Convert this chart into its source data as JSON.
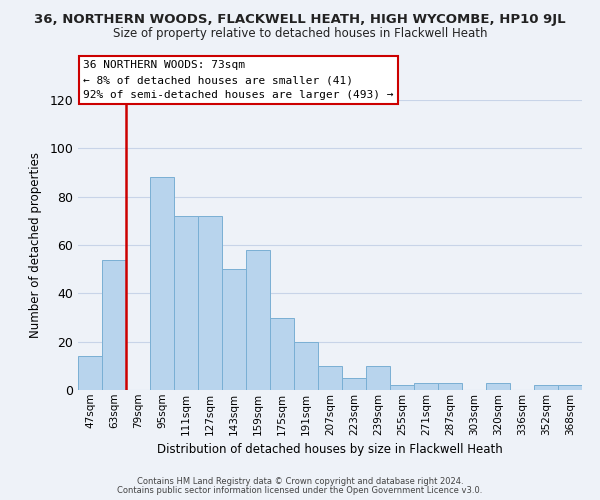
{
  "title": "36, NORTHERN WOODS, FLACKWELL HEATH, HIGH WYCOMBE, HP10 9JL",
  "subtitle": "Size of property relative to detached houses in Flackwell Heath",
  "xlabel": "Distribution of detached houses by size in Flackwell Heath",
  "ylabel": "Number of detached properties",
  "bar_labels": [
    "47sqm",
    "63sqm",
    "79sqm",
    "95sqm",
    "111sqm",
    "127sqm",
    "143sqm",
    "159sqm",
    "175sqm",
    "191sqm",
    "207sqm",
    "223sqm",
    "239sqm",
    "255sqm",
    "271sqm",
    "287sqm",
    "303sqm",
    "320sqm",
    "336sqm",
    "352sqm",
    "368sqm"
  ],
  "bar_values": [
    14,
    54,
    0,
    88,
    72,
    72,
    50,
    58,
    30,
    20,
    10,
    5,
    10,
    2,
    3,
    3,
    0,
    3,
    0,
    2,
    2
  ],
  "bar_color": "#b8d4ed",
  "bar_edge_color": "#7aafd4",
  "vline_color": "#cc0000",
  "ylim": [
    0,
    120
  ],
  "yticks": [
    0,
    20,
    40,
    60,
    80,
    100,
    120
  ],
  "annotation_title": "36 NORTHERN WOODS: 73sqm",
  "annotation_line1": "← 8% of detached houses are smaller (41)",
  "annotation_line2": "92% of semi-detached houses are larger (493) →",
  "footer1": "Contains HM Land Registry data © Crown copyright and database right 2024.",
  "footer2": "Contains public sector information licensed under the Open Government Licence v3.0.",
  "bg_color": "#eef2f8",
  "plot_bg_color": "#eef2f8",
  "grid_color": "#c8d4e8"
}
